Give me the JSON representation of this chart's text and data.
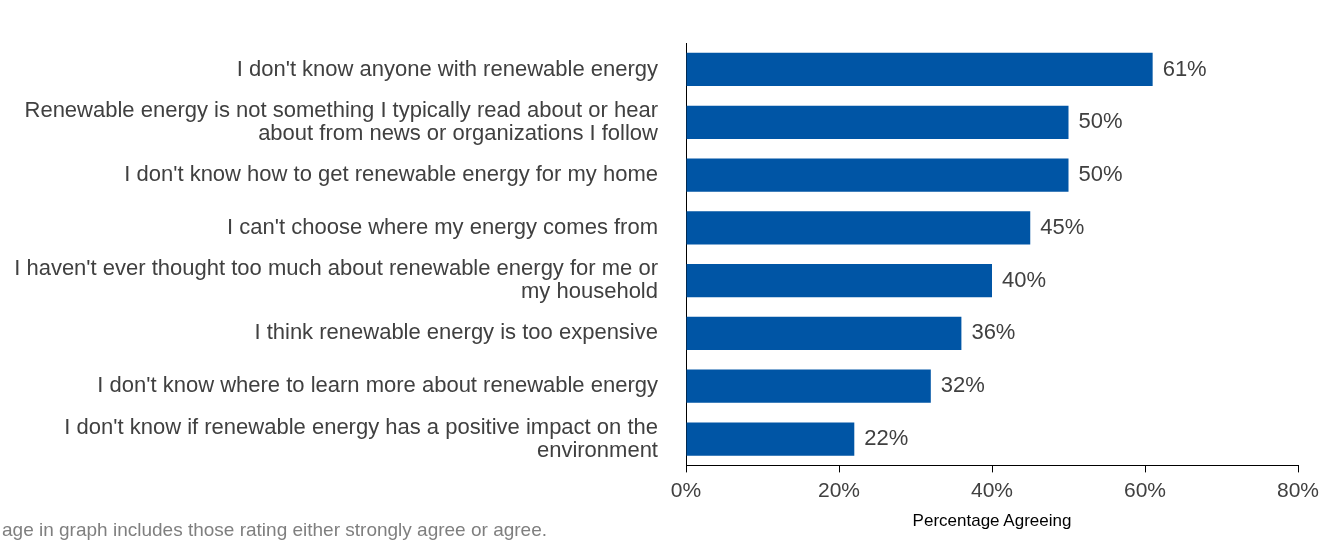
{
  "chart_data": {
    "type": "bar",
    "orientation": "horizontal",
    "xlabel": "Percentage Agreeing",
    "categories": [
      "I don't know anyone with renewable energy",
      "Renewable energy is not something I typically read about or hear about from news or organizations I follow",
      "I don't know how to get renewable energy for my home",
      "I can't choose where my energy comes from",
      "I haven't ever thought too much about renewable energy for me or my household",
      "I think renewable energy is too expensive",
      "I don't know where to learn more about renewable energy",
      "I don't know if renewable energy has a positive impact on the environment"
    ],
    "values": [
      61,
      50,
      50,
      45,
      40,
      36,
      32,
      22
    ],
    "value_labels": [
      "61%",
      "50%",
      "50%",
      "45%",
      "40%",
      "36%",
      "32%",
      "22%"
    ],
    "color": "#0055a5",
    "xlim": [
      0,
      80
    ],
    "xticks": [
      {
        "value": 0,
        "label": "0%"
      },
      {
        "value": 20,
        "label": "20%"
      },
      {
        "value": 40,
        "label": "40%"
      },
      {
        "value": 60,
        "label": "60%"
      },
      {
        "value": 80,
        "label": "80%"
      }
    ],
    "grid": false,
    "legend": false,
    "annotations": [
      "age in graph includes those rating either strongly agree or agree."
    ]
  }
}
